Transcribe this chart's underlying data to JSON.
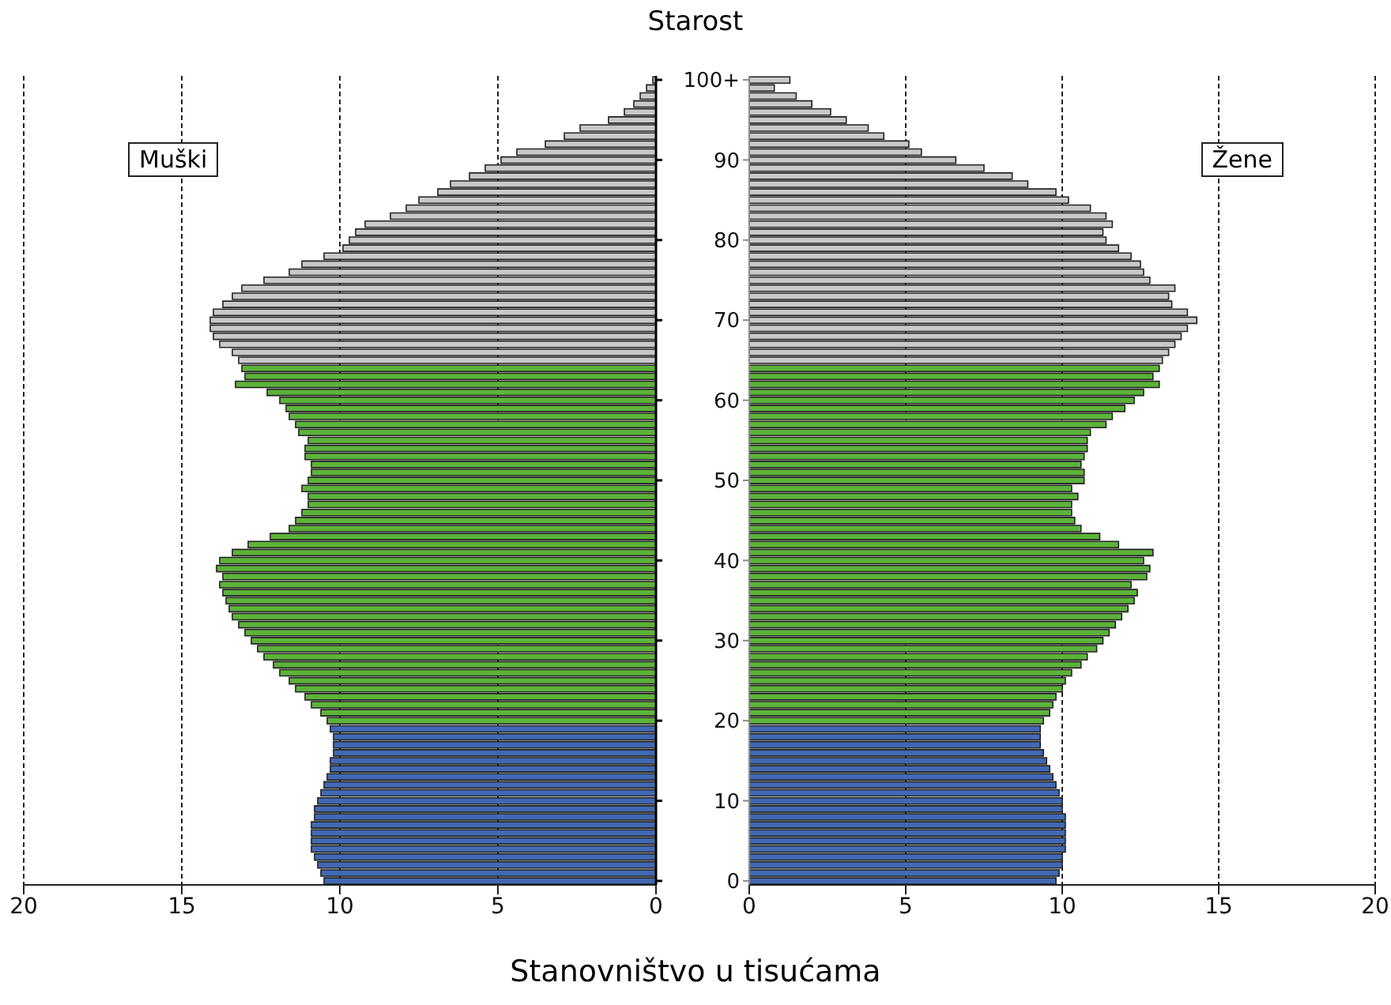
{
  "chart_data": [
    {
      "type": "bar",
      "orientation": "horizontal",
      "categories": [
        "100+",
        null,
        null,
        null,
        null,
        null,
        null,
        null,
        null,
        null,
        "90",
        null,
        null,
        null,
        null,
        null,
        null,
        null,
        null,
        null,
        "80",
        null,
        null,
        null,
        null,
        null,
        null,
        null,
        null,
        null,
        "70",
        null,
        null,
        null,
        null,
        null,
        null,
        null,
        null,
        null,
        "60",
        null,
        null,
        null,
        null,
        null,
        null,
        null,
        null,
        null,
        "50",
        null,
        null,
        null,
        null,
        null,
        null,
        null,
        null,
        null,
        "40",
        null,
        null,
        null,
        null,
        null,
        null,
        null,
        null,
        null,
        "30",
        null,
        null,
        null,
        null,
        null,
        null,
        null,
        null,
        null,
        "20",
        null,
        null,
        null,
        null,
        null,
        null,
        null,
        null,
        null,
        "10",
        null,
        null,
        null,
        null,
        null,
        null,
        null,
        null,
        null,
        "0"
      ],
      "xlim": [
        20,
        0
      ],
      "xticks": [
        20,
        15,
        10,
        5,
        0
      ],
      "grid": "x",
      "legend": "top left",
      "tick_labels": "x",
      "series": [
        {
          "name": "Muški",
          "colors": [
            "#c8c8c8",
            "#c8c8c8",
            "#c8c8c8",
            "#c8c8c8",
            "#c8c8c8",
            "#c8c8c8",
            "#c8c8c8",
            "#c8c8c8",
            "#c8c8c8",
            "#c8c8c8",
            "#c8c8c8",
            "#c8c8c8",
            "#c8c8c8",
            "#c8c8c8",
            "#c8c8c8",
            "#c8c8c8",
            "#c8c8c8",
            "#c8c8c8",
            "#c8c8c8",
            "#c8c8c8",
            "#c8c8c8",
            "#c8c8c8",
            "#c8c8c8",
            "#c8c8c8",
            "#c8c8c8",
            "#c8c8c8",
            "#c8c8c8",
            "#c8c8c8",
            "#c8c8c8",
            "#c8c8c8",
            "#c8c8c8",
            "#c8c8c8",
            "#c8c8c8",
            "#c8c8c8",
            "#c8c8c8",
            "#c8c8c8",
            "#5cb33a",
            "#5cb33a",
            "#5cb33a",
            "#5cb33a",
            "#5cb33a",
            "#5cb33a",
            "#5cb33a",
            "#5cb33a",
            "#5cb33a",
            "#5cb33a",
            "#5cb33a",
            "#5cb33a",
            "#5cb33a",
            "#5cb33a",
            "#5cb33a",
            "#5cb33a",
            "#5cb33a",
            "#5cb33a",
            "#5cb33a",
            "#5cb33a",
            "#5cb33a",
            "#5cb33a",
            "#5cb33a",
            "#5cb33a",
            "#5cb33a",
            "#5cb33a",
            "#5cb33a",
            "#5cb33a",
            "#5cb33a",
            "#5cb33a",
            "#5cb33a",
            "#5cb33a",
            "#5cb33a",
            "#5cb33a",
            "#5cb33a",
            "#5cb33a",
            "#5cb33a",
            "#5cb33a",
            "#5cb33a",
            "#5cb33a",
            "#5cb33a",
            "#5cb33a",
            "#5cb33a",
            "#5cb33a",
            "#5cb33a",
            "#4169b4",
            "#4169b4",
            "#4169b4",
            "#4169b4",
            "#4169b4",
            "#4169b4",
            "#4169b4",
            "#4169b4",
            "#4169b4",
            "#4169b4",
            "#4169b4",
            "#4169b4",
            "#4169b4",
            "#4169b4",
            "#4169b4",
            "#4169b4",
            "#4169b4",
            "#4169b4",
            "#4169b4",
            "#4169b4"
          ],
          "values": [
            0.1,
            0.3,
            0.5,
            0.7,
            1.0,
            1.5,
            2.4,
            2.9,
            3.5,
            4.4,
            4.9,
            5.4,
            5.9,
            6.5,
            6.9,
            7.5,
            7.9,
            8.4,
            9.2,
            9.5,
            9.7,
            9.9,
            10.5,
            11.2,
            11.6,
            12.4,
            13.1,
            13.4,
            13.7,
            14.0,
            14.1,
            14.1,
            14.0,
            13.8,
            13.4,
            13.2,
            13.1,
            13.0,
            13.3,
            12.3,
            11.9,
            11.7,
            11.6,
            11.4,
            11.3,
            11.0,
            11.1,
            11.1,
            10.9,
            10.9,
            11.0,
            11.2,
            11.0,
            11.0,
            11.2,
            11.4,
            11.6,
            12.2,
            12.9,
            13.4,
            13.8,
            13.9,
            13.7,
            13.8,
            13.7,
            13.6,
            13.5,
            13.4,
            13.2,
            13.0,
            12.8,
            12.6,
            12.4,
            12.1,
            11.9,
            11.6,
            11.4,
            11.1,
            10.9,
            10.6,
            10.4,
            10.3,
            10.2,
            10.2,
            10.2,
            10.3,
            10.3,
            10.4,
            10.5,
            10.6,
            10.7,
            10.8,
            10.8,
            10.9,
            10.9,
            10.9,
            10.9,
            10.8,
            10.7,
            10.6,
            10.5
          ]
        }
      ]
    },
    {
      "type": "bar",
      "orientation": "horizontal",
      "ylabel": "Starost",
      "xlabel": "Stanovništvo u tisućama",
      "categories": [
        "100+",
        null,
        null,
        null,
        null,
        null,
        null,
        null,
        null,
        null,
        "90",
        null,
        null,
        null,
        null,
        null,
        null,
        null,
        null,
        null,
        "80",
        null,
        null,
        null,
        null,
        null,
        null,
        null,
        null,
        null,
        "70",
        null,
        null,
        null,
        null,
        null,
        null,
        null,
        null,
        null,
        "60",
        null,
        null,
        null,
        null,
        null,
        null,
        null,
        null,
        null,
        "50",
        null,
        null,
        null,
        null,
        null,
        null,
        null,
        null,
        null,
        "40",
        null,
        null,
        null,
        null,
        null,
        null,
        null,
        null,
        null,
        "30",
        null,
        null,
        null,
        null,
        null,
        null,
        null,
        null,
        null,
        "20",
        null,
        null,
        null,
        null,
        null,
        null,
        null,
        null,
        null,
        "10",
        null,
        null,
        null,
        null,
        null,
        null,
        null,
        null,
        null,
        "0"
      ],
      "xlim": [
        0,
        20
      ],
      "xticks": [
        0,
        5,
        10,
        15,
        20
      ],
      "grid": "x",
      "legend": "top right",
      "series": [
        {
          "name": "Žene",
          "colors": [
            "#c8c8c8",
            "#c8c8c8",
            "#c8c8c8",
            "#c8c8c8",
            "#c8c8c8",
            "#c8c8c8",
            "#c8c8c8",
            "#c8c8c8",
            "#c8c8c8",
            "#c8c8c8",
            "#c8c8c8",
            "#c8c8c8",
            "#c8c8c8",
            "#c8c8c8",
            "#c8c8c8",
            "#c8c8c8",
            "#c8c8c8",
            "#c8c8c8",
            "#c8c8c8",
            "#c8c8c8",
            "#c8c8c8",
            "#c8c8c8",
            "#c8c8c8",
            "#c8c8c8",
            "#c8c8c8",
            "#c8c8c8",
            "#c8c8c8",
            "#c8c8c8",
            "#c8c8c8",
            "#c8c8c8",
            "#c8c8c8",
            "#c8c8c8",
            "#c8c8c8",
            "#c8c8c8",
            "#c8c8c8",
            "#c8c8c8",
            "#5cb33a",
            "#5cb33a",
            "#5cb33a",
            "#5cb33a",
            "#5cb33a",
            "#5cb33a",
            "#5cb33a",
            "#5cb33a",
            "#5cb33a",
            "#5cb33a",
            "#5cb33a",
            "#5cb33a",
            "#5cb33a",
            "#5cb33a",
            "#5cb33a",
            "#5cb33a",
            "#5cb33a",
            "#5cb33a",
            "#5cb33a",
            "#5cb33a",
            "#5cb33a",
            "#5cb33a",
            "#5cb33a",
            "#5cb33a",
            "#5cb33a",
            "#5cb33a",
            "#5cb33a",
            "#5cb33a",
            "#5cb33a",
            "#5cb33a",
            "#5cb33a",
            "#5cb33a",
            "#5cb33a",
            "#5cb33a",
            "#5cb33a",
            "#5cb33a",
            "#5cb33a",
            "#5cb33a",
            "#5cb33a",
            "#5cb33a",
            "#5cb33a",
            "#5cb33a",
            "#5cb33a",
            "#5cb33a",
            "#5cb33a",
            "#4169b4",
            "#4169b4",
            "#4169b4",
            "#4169b4",
            "#4169b4",
            "#4169b4",
            "#4169b4",
            "#4169b4",
            "#4169b4",
            "#4169b4",
            "#4169b4",
            "#4169b4",
            "#4169b4",
            "#4169b4",
            "#4169b4",
            "#4169b4",
            "#4169b4",
            "#4169b4",
            "#4169b4",
            "#4169b4"
          ],
          "values": [
            1.3,
            0.8,
            1.5,
            2.0,
            2.6,
            3.1,
            3.8,
            4.3,
            5.1,
            5.5,
            6.6,
            7.5,
            8.4,
            8.9,
            9.8,
            10.2,
            10.9,
            11.4,
            11.6,
            11.3,
            11.4,
            11.8,
            12.2,
            12.5,
            12.6,
            12.8,
            13.6,
            13.4,
            13.5,
            14.0,
            14.3,
            14.0,
            13.8,
            13.6,
            13.4,
            13.2,
            13.1,
            12.9,
            13.1,
            12.6,
            12.3,
            12.0,
            11.6,
            11.4,
            10.9,
            10.8,
            10.8,
            10.7,
            10.6,
            10.7,
            10.7,
            10.3,
            10.5,
            10.3,
            10.3,
            10.4,
            10.6,
            11.2,
            11.8,
            12.9,
            12.6,
            12.8,
            12.7,
            12.2,
            12.4,
            12.3,
            12.1,
            11.9,
            11.7,
            11.5,
            11.3,
            11.1,
            10.8,
            10.6,
            10.3,
            10.1,
            10.0,
            9.8,
            9.7,
            9.6,
            9.4,
            9.3,
            9.3,
            9.3,
            9.4,
            9.5,
            9.6,
            9.7,
            9.8,
            9.9,
            10.0,
            10.0,
            10.1,
            10.1,
            10.1,
            10.1,
            10.1,
            10.0,
            10.0,
            9.9,
            9.8
          ]
        }
      ]
    }
  ]
}
